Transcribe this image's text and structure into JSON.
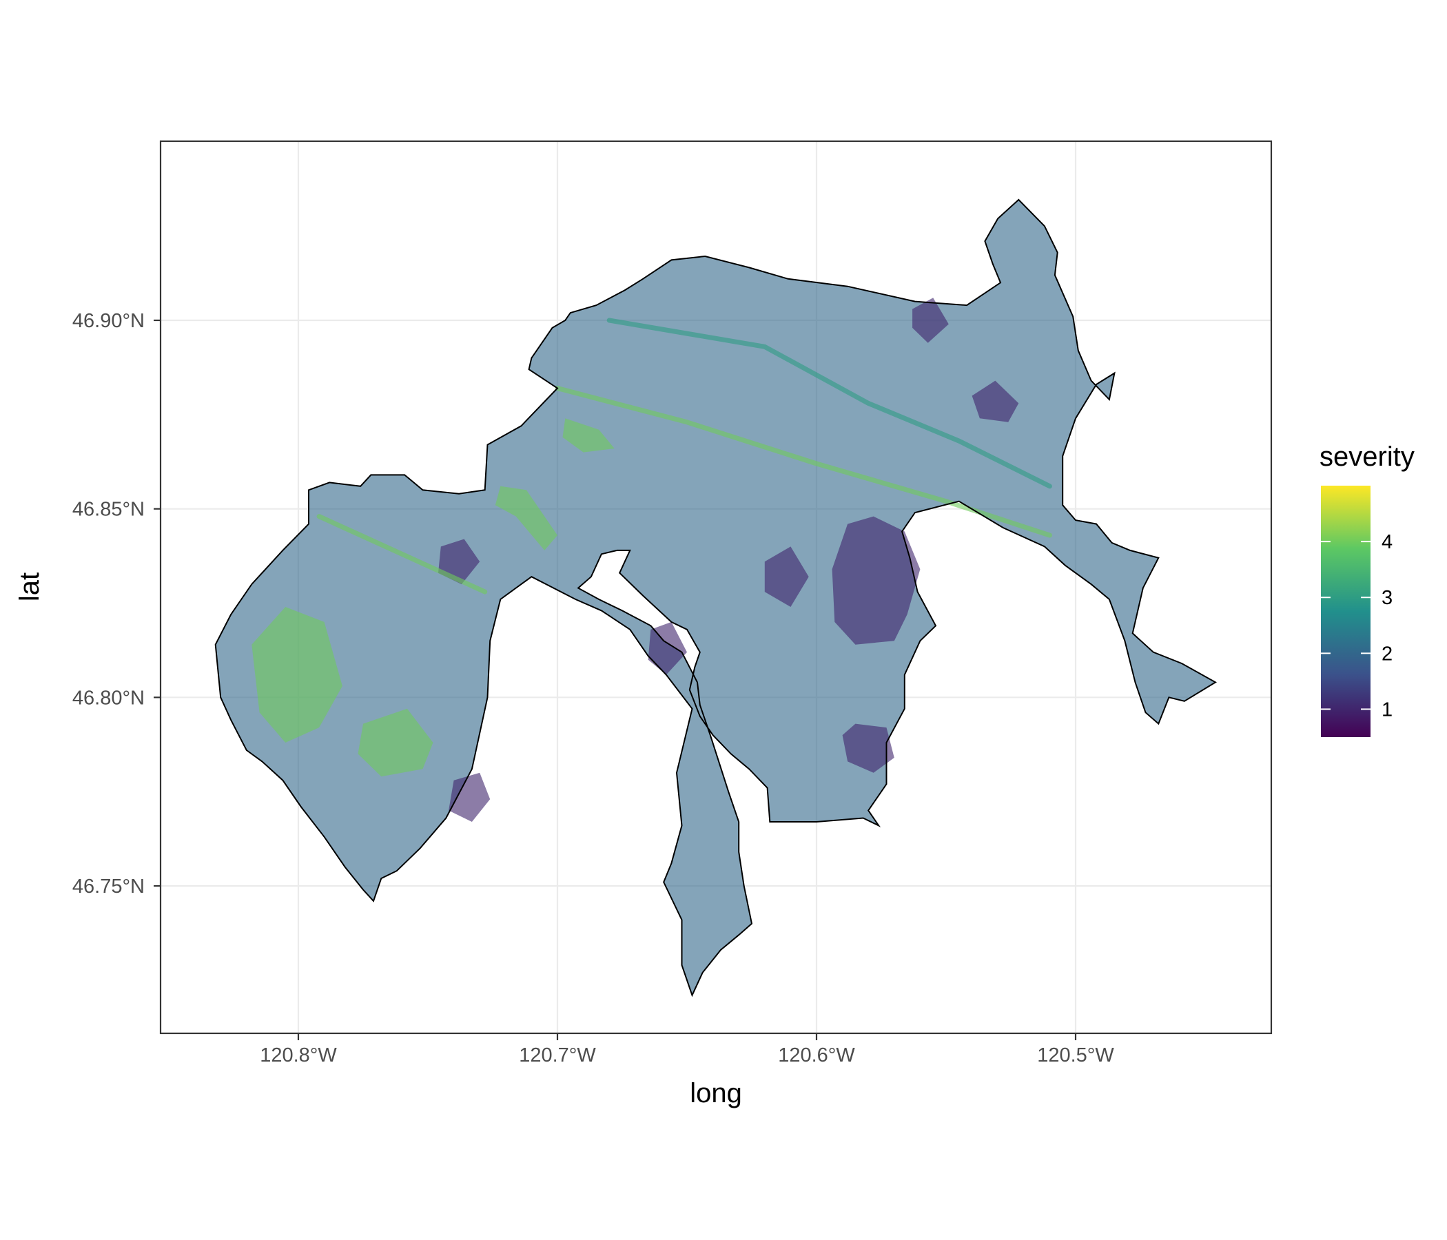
{
  "chart_data": {
    "type": "heatmap",
    "title": "",
    "xlabel": "long",
    "ylabel": "lat",
    "x_ticks": [
      {
        "value": -120.8,
        "label": "120.8°W"
      },
      {
        "value": -120.7,
        "label": "120.7°W"
      },
      {
        "value": -120.6,
        "label": "120.6°W"
      },
      {
        "value": -120.5,
        "label": "120.5°W"
      }
    ],
    "y_ticks": [
      {
        "value": 46.75,
        "label": "46.75°N"
      },
      {
        "value": 46.8,
        "label": "46.80°N"
      },
      {
        "value": 46.85,
        "label": "46.85°N"
      },
      {
        "value": 46.9,
        "label": "46.90°N"
      }
    ],
    "xlim": [
      -120.854,
      -120.425
    ],
    "ylim": [
      46.71,
      46.946
    ],
    "grid": true,
    "legend": {
      "title": "severity",
      "position": "right",
      "scale": "viridis",
      "range": [
        0.5,
        5
      ],
      "ticks": [
        1,
        2,
        3,
        4
      ],
      "colors": [
        "#440154",
        "#3b528b",
        "#21908c",
        "#5dc863",
        "#fde725"
      ]
    },
    "fill_alpha": 0.6,
    "boundary_color": "#000000",
    "dominant_value": 2,
    "main_polygon": [
      [
        -120.832,
        46.814
      ],
      [
        -120.826,
        46.822
      ],
      [
        -120.818,
        46.83
      ],
      [
        -120.806,
        46.839
      ],
      [
        -120.796,
        46.846
      ],
      [
        -120.796,
        46.855
      ],
      [
        -120.788,
        46.857
      ],
      [
        -120.776,
        46.856
      ],
      [
        -120.772,
        46.859
      ],
      [
        -120.759,
        46.859
      ],
      [
        -120.752,
        46.855
      ],
      [
        -120.738,
        46.854
      ],
      [
        -120.728,
        46.855
      ],
      [
        -120.727,
        46.867
      ],
      [
        -120.714,
        46.872
      ],
      [
        -120.7,
        46.882
      ],
      [
        -120.711,
        46.887
      ],
      [
        -120.71,
        46.89
      ],
      [
        -120.702,
        46.898
      ],
      [
        -120.697,
        46.9
      ],
      [
        -120.695,
        46.902
      ],
      [
        -120.685,
        46.904
      ],
      [
        -120.674,
        46.908
      ],
      [
        -120.667,
        46.911
      ],
      [
        -120.656,
        46.916
      ],
      [
        -120.643,
        46.917
      ],
      [
        -120.626,
        46.914
      ],
      [
        -120.611,
        46.911
      ],
      [
        -120.588,
        46.909
      ],
      [
        -120.562,
        46.905
      ],
      [
        -120.542,
        46.904
      ],
      [
        -120.529,
        46.91
      ],
      [
        -120.532,
        46.915
      ],
      [
        -120.535,
        46.921
      ],
      [
        -120.53,
        46.927
      ],
      [
        -120.522,
        46.932
      ],
      [
        -120.512,
        46.925
      ],
      [
        -120.507,
        46.918
      ],
      [
        -120.508,
        46.912
      ],
      [
        -120.501,
        46.901
      ],
      [
        -120.499,
        46.892
      ],
      [
        -120.494,
        46.884
      ],
      [
        -120.487,
        46.879
      ],
      [
        -120.485,
        46.886
      ],
      [
        -120.492,
        46.883
      ],
      [
        -120.5,
        46.874
      ],
      [
        -120.505,
        46.864
      ],
      [
        -120.505,
        46.851
      ],
      [
        -120.5,
        46.847
      ],
      [
        -120.492,
        46.846
      ],
      [
        -120.486,
        46.841
      ],
      [
        -120.479,
        46.839
      ],
      [
        -120.468,
        46.837
      ],
      [
        -120.474,
        46.829
      ],
      [
        -120.478,
        46.817
      ],
      [
        -120.47,
        46.812
      ],
      [
        -120.459,
        46.809
      ],
      [
        -120.446,
        46.804
      ],
      [
        -120.458,
        46.799
      ],
      [
        -120.464,
        46.8
      ],
      [
        -120.468,
        46.793
      ],
      [
        -120.473,
        46.796
      ],
      [
        -120.477,
        46.804
      ],
      [
        -120.481,
        46.815
      ],
      [
        -120.487,
        46.826
      ],
      [
        -120.494,
        46.83
      ],
      [
        -120.504,
        46.835
      ],
      [
        -120.512,
        46.84
      ],
      [
        -120.528,
        46.845
      ],
      [
        -120.545,
        46.852
      ],
      [
        -120.562,
        46.849
      ],
      [
        -120.567,
        46.844
      ],
      [
        -120.564,
        46.837
      ],
      [
        -120.561,
        46.828
      ],
      [
        -120.554,
        46.819
      ],
      [
        -120.56,
        46.815
      ],
      [
        -120.566,
        46.806
      ],
      [
        -120.566,
        46.797
      ],
      [
        -120.573,
        46.788
      ],
      [
        -120.573,
        46.777
      ],
      [
        -120.58,
        46.77
      ],
      [
        -120.576,
        46.766
      ],
      [
        -120.582,
        46.768
      ],
      [
        -120.6,
        46.767
      ],
      [
        -120.618,
        46.767
      ],
      [
        -120.619,
        46.776
      ],
      [
        -120.626,
        46.781
      ],
      [
        -120.633,
        46.785
      ],
      [
        -120.64,
        46.79
      ],
      [
        -120.645,
        46.795
      ],
      [
        -120.649,
        46.802
      ],
      [
        -120.647,
        46.808
      ],
      [
        -120.645,
        46.812
      ],
      [
        -120.65,
        46.818
      ],
      [
        -120.656,
        46.82
      ],
      [
        -120.667,
        46.827
      ],
      [
        -120.676,
        46.833
      ],
      [
        -120.672,
        46.839
      ],
      [
        -120.677,
        46.839
      ],
      [
        -120.683,
        46.838
      ],
      [
        -120.687,
        46.832
      ],
      [
        -120.692,
        46.829
      ],
      [
        -120.684,
        46.826
      ],
      [
        -120.675,
        46.823
      ],
      [
        -120.664,
        46.819
      ],
      [
        -120.659,
        46.815
      ],
      [
        -120.652,
        46.812
      ],
      [
        -120.646,
        46.804
      ],
      [
        -120.645,
        46.798
      ],
      [
        -120.641,
        46.79
      ],
      [
        -120.634,
        46.775
      ],
      [
        -120.63,
        46.767
      ],
      [
        -120.63,
        46.759
      ],
      [
        -120.628,
        46.75
      ],
      [
        -120.625,
        46.74
      ],
      [
        -120.63,
        46.737
      ],
      [
        -120.637,
        46.733
      ],
      [
        -120.644,
        46.727
      ],
      [
        -120.648,
        46.721
      ],
      [
        -120.652,
        46.729
      ],
      [
        -120.652,
        46.741
      ],
      [
        -120.659,
        46.751
      ],
      [
        -120.656,
        46.756
      ],
      [
        -120.652,
        46.766
      ],
      [
        -120.654,
        46.78
      ],
      [
        -120.648,
        46.797
      ],
      [
        -120.658,
        46.806
      ],
      [
        -120.665,
        46.811
      ],
      [
        -120.672,
        46.818
      ],
      [
        -120.683,
        46.823
      ],
      [
        -120.693,
        46.826
      ],
      [
        -120.71,
        46.832
      ],
      [
        -120.716,
        46.829
      ],
      [
        -120.722,
        46.826
      ],
      [
        -120.726,
        46.815
      ],
      [
        -120.727,
        46.8
      ],
      [
        -120.733,
        46.781
      ],
      [
        -120.743,
        46.768
      ],
      [
        -120.753,
        46.76
      ],
      [
        -120.762,
        46.754
      ],
      [
        -120.768,
        46.752
      ],
      [
        -120.771,
        46.746
      ],
      [
        -120.775,
        46.749
      ],
      [
        -120.782,
        46.755
      ],
      [
        -120.79,
        46.763
      ],
      [
        -120.799,
        46.771
      ],
      [
        -120.806,
        46.778
      ],
      [
        -120.814,
        46.783
      ],
      [
        -120.82,
        46.786
      ],
      [
        -120.826,
        46.794
      ],
      [
        -120.83,
        46.8
      ],
      [
        -120.832,
        46.814
      ]
    ],
    "low_patches": [
      {
        "value": 1,
        "polygon": [
          [
            -120.578,
            46.848
          ],
          [
            -120.566,
            46.844
          ],
          [
            -120.56,
            46.834
          ],
          [
            -120.565,
            46.822
          ],
          [
            -120.57,
            46.815
          ],
          [
            -120.585,
            46.814
          ],
          [
            -120.593,
            46.82
          ],
          [
            -120.594,
            46.834
          ],
          [
            -120.588,
            46.846
          ]
        ]
      },
      {
        "value": 1,
        "polygon": [
          [
            -120.585,
            46.793
          ],
          [
            -120.573,
            46.792
          ],
          [
            -120.57,
            46.784
          ],
          [
            -120.578,
            46.78
          ],
          [
            -120.588,
            46.783
          ],
          [
            -120.59,
            46.79
          ]
        ]
      },
      {
        "value": 1,
        "polygon": [
          [
            -120.54,
            46.88
          ],
          [
            -120.531,
            46.884
          ],
          [
            -120.522,
            46.878
          ],
          [
            -120.526,
            46.873
          ],
          [
            -120.537,
            46.874
          ]
        ]
      },
      {
        "value": 1,
        "polygon": [
          [
            -120.62,
            46.836
          ],
          [
            -120.61,
            46.84
          ],
          [
            -120.603,
            46.832
          ],
          [
            -120.61,
            46.824
          ],
          [
            -120.62,
            46.828
          ]
        ]
      },
      {
        "value": 1,
        "polygon": [
          [
            -120.745,
            46.84
          ],
          [
            -120.736,
            46.842
          ],
          [
            -120.73,
            46.836
          ],
          [
            -120.737,
            46.83
          ],
          [
            -120.746,
            46.833
          ]
        ]
      },
      {
        "value": 1,
        "polygon": [
          [
            -120.74,
            46.778
          ],
          [
            -120.73,
            46.78
          ],
          [
            -120.726,
            46.773
          ],
          [
            -120.733,
            46.767
          ],
          [
            -120.742,
            46.77
          ]
        ]
      },
      {
        "value": 1,
        "polygon": [
          [
            -120.664,
            46.818
          ],
          [
            -120.656,
            46.82
          ],
          [
            -120.65,
            46.812
          ],
          [
            -120.658,
            46.806
          ],
          [
            -120.665,
            46.81
          ]
        ]
      },
      {
        "value": 1,
        "polygon": [
          [
            -120.563,
            46.903
          ],
          [
            -120.555,
            46.906
          ],
          [
            -120.549,
            46.899
          ],
          [
            -120.557,
            46.894
          ],
          [
            -120.563,
            46.898
          ]
        ]
      }
    ],
    "high_patches": [
      {
        "value": 4,
        "polygon": [
          [
            -120.818,
            46.814
          ],
          [
            -120.805,
            46.824
          ],
          [
            -120.79,
            46.82
          ],
          [
            -120.783,
            46.803
          ],
          [
            -120.792,
            46.792
          ],
          [
            -120.805,
            46.788
          ],
          [
            -120.815,
            46.796
          ]
        ]
      },
      {
        "value": 4,
        "polygon": [
          [
            -120.775,
            46.793
          ],
          [
            -120.758,
            46.797
          ],
          [
            -120.748,
            46.788
          ],
          [
            -120.752,
            46.781
          ],
          [
            -120.768,
            46.779
          ],
          [
            -120.777,
            46.785
          ]
        ]
      },
      {
        "value": 4,
        "polygon": [
          [
            -120.722,
            46.856
          ],
          [
            -120.712,
            46.855
          ],
          [
            -120.7,
            46.843
          ],
          [
            -120.705,
            46.839
          ],
          [
            -120.716,
            46.848
          ],
          [
            -120.724,
            46.851
          ]
        ]
      },
      {
        "value": 4,
        "polygon": [
          [
            -120.697,
            46.874
          ],
          [
            -120.684,
            46.871
          ],
          [
            -120.678,
            46.866
          ],
          [
            -120.69,
            46.865
          ],
          [
            -120.698,
            46.869
          ]
        ]
      }
    ],
    "ridge_lines": [
      {
        "value": 4,
        "points": [
          [
            -120.7,
            46.882
          ],
          [
            -120.65,
            46.873
          ],
          [
            -120.6,
            46.862
          ],
          [
            -120.55,
            46.852
          ],
          [
            -120.51,
            46.843
          ]
        ]
      },
      {
        "value": 3,
        "points": [
          [
            -120.68,
            46.9
          ],
          [
            -120.62,
            46.893
          ],
          [
            -120.58,
            46.878
          ],
          [
            -120.545,
            46.868
          ],
          [
            -120.51,
            46.856
          ]
        ]
      },
      {
        "value": 4,
        "points": [
          [
            -120.792,
            46.848
          ],
          [
            -120.76,
            46.838
          ],
          [
            -120.728,
            46.828
          ]
        ]
      }
    ]
  }
}
